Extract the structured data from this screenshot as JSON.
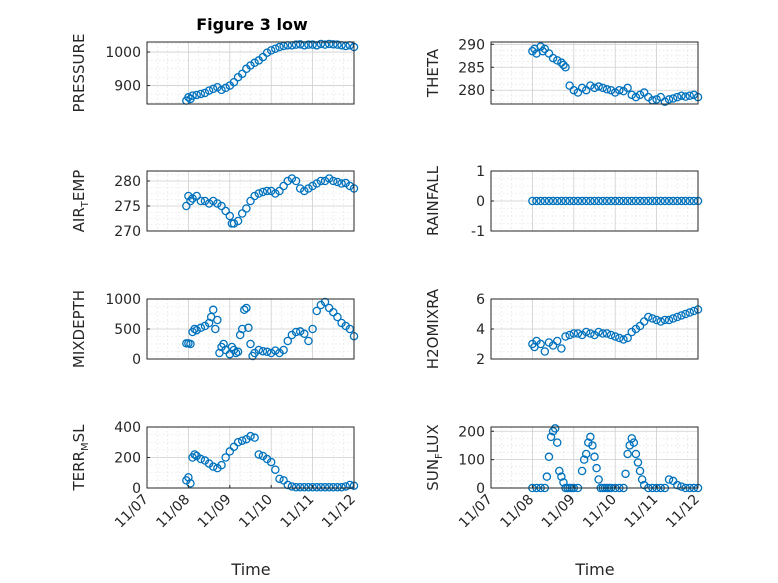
{
  "figure": {
    "title": "Figure 3 low",
    "marker_color": "#0072BD",
    "marker": "circle",
    "grid": "on (major + minor)",
    "layout": "4 rows x 2 columns",
    "x_tick_labels": [
      "11/07",
      "11/08",
      "11/09",
      "11/10",
      "11/11",
      "11/12"
    ],
    "x_label": "Time"
  },
  "chart_data": [
    {
      "type": "scatter",
      "ylabel": "PRESSURE",
      "ylim": [
        845,
        1030
      ],
      "yticks": [
        900,
        1000
      ],
      "ytick_labels": [
        "900",
        "1000"
      ],
      "x": [
        0.95,
        1.0,
        1.05,
        1.1,
        1.2,
        1.3,
        1.4,
        1.5,
        1.6,
        1.7,
        1.8,
        1.9,
        2.0,
        2.1,
        2.2,
        2.3,
        2.4,
        2.5,
        2.6,
        2.7,
        2.8,
        2.9,
        3.0,
        3.1,
        3.2,
        3.3,
        3.4,
        3.5,
        3.6,
        3.7,
        3.8,
        3.9,
        4.0,
        4.1,
        4.2,
        4.3,
        4.4,
        4.5,
        4.6,
        4.7,
        4.8,
        4.9,
        5.0
      ],
      "y": [
        855,
        865,
        860,
        870,
        872,
        875,
        878,
        885,
        890,
        895,
        887,
        893,
        900,
        910,
        925,
        935,
        950,
        960,
        968,
        975,
        985,
        998,
        1005,
        1010,
        1015,
        1018,
        1020,
        1020,
        1022,
        1023,
        1020,
        1022,
        1022,
        1020,
        1024,
        1022,
        1024,
        1023,
        1022,
        1020,
        1018,
        1020,
        1015
      ]
    },
    {
      "type": "scatter",
      "ylabel": "THETA",
      "ylim": [
        277,
        290.5
      ],
      "yticks": [
        280,
        285,
        290
      ],
      "ytick_labels": [
        "280",
        "285",
        "290"
      ],
      "x": [
        1.0,
        1.05,
        1.1,
        1.2,
        1.25,
        1.3,
        1.4,
        1.5,
        1.6,
        1.7,
        1.75,
        1.8,
        1.9,
        2.0,
        2.1,
        2.2,
        2.3,
        2.4,
        2.5,
        2.6,
        2.7,
        2.8,
        2.9,
        3.0,
        3.1,
        3.2,
        3.3,
        3.4,
        3.5,
        3.6,
        3.7,
        3.8,
        3.9,
        4.0,
        4.1,
        4.2,
        4.3,
        4.4,
        4.5,
        4.6,
        4.7,
        4.8,
        4.9,
        5.0
      ],
      "y": [
        288.5,
        289,
        288,
        289.5,
        288.5,
        289,
        288,
        287,
        286.5,
        286,
        285.5,
        285,
        281,
        280,
        279.5,
        280.5,
        280,
        281,
        280.5,
        280.8,
        280.5,
        280.2,
        280,
        279.5,
        280,
        279.8,
        280.5,
        279,
        278.5,
        279,
        279.5,
        278.5,
        277.8,
        278,
        278.5,
        277.5,
        278,
        278.2,
        278.5,
        278.8,
        278.6,
        278.8,
        279,
        278.5
      ]
    },
    {
      "type": "scatter",
      "ylabel": "AIR_TEMP",
      "ylim": [
        270,
        282
      ],
      "yticks": [
        270,
        275,
        280
      ],
      "ytick_labels": [
        "270",
        "275",
        "280"
      ],
      "x": [
        0.95,
        1.0,
        1.05,
        1.1,
        1.2,
        1.3,
        1.4,
        1.5,
        1.6,
        1.7,
        1.8,
        1.9,
        2.0,
        2.05,
        2.1,
        2.2,
        2.3,
        2.4,
        2.5,
        2.6,
        2.7,
        2.8,
        2.9,
        3.0,
        3.1,
        3.2,
        3.3,
        3.4,
        3.5,
        3.6,
        3.7,
        3.8,
        3.9,
        4.0,
        4.1,
        4.2,
        4.3,
        4.4,
        4.5,
        4.6,
        4.7,
        4.8,
        4.9,
        5.0
      ],
      "y": [
        275,
        277,
        276,
        276.5,
        277,
        276,
        276,
        275.5,
        276,
        275.5,
        275,
        274,
        273,
        271.5,
        271.5,
        272,
        273.5,
        274.5,
        276,
        277,
        277.5,
        277.8,
        278,
        278,
        277.5,
        278,
        279,
        280,
        280.5,
        280,
        278.5,
        278,
        278.5,
        279,
        279.5,
        280,
        280,
        280.5,
        280,
        279.8,
        279.5,
        279.6,
        279,
        278.5
      ]
    },
    {
      "type": "scatter",
      "ylabel": "RAINFALL",
      "ylim": [
        -1,
        1
      ],
      "yticks": [
        -1,
        0,
        1
      ],
      "ytick_labels": [
        "-1",
        "0",
        "1"
      ],
      "x": [
        1.0,
        1.1,
        1.2,
        1.3,
        1.4,
        1.5,
        1.6,
        1.7,
        1.8,
        1.9,
        2.0,
        2.1,
        2.2,
        2.3,
        2.4,
        2.5,
        2.6,
        2.7,
        2.8,
        2.9,
        3.0,
        3.1,
        3.2,
        3.3,
        3.4,
        3.5,
        3.6,
        3.7,
        3.8,
        3.9,
        4.0,
        4.1,
        4.2,
        4.3,
        4.4,
        4.5,
        4.6,
        4.7,
        4.8,
        4.9,
        5.0
      ],
      "y": [
        0,
        0,
        0,
        0,
        0,
        0,
        0,
        0,
        0,
        0,
        0,
        0,
        0,
        0,
        0,
        0,
        0,
        0,
        0,
        0,
        0,
        0,
        0,
        0,
        0,
        0,
        0,
        0,
        0,
        0,
        0,
        0,
        0,
        0,
        0,
        0,
        0,
        0,
        0,
        0,
        0
      ]
    },
    {
      "type": "scatter",
      "ylabel": "MIXDEPTH",
      "ylim": [
        0,
        1000
      ],
      "yticks": [
        0,
        500,
        1000
      ],
      "ytick_labels": [
        "0",
        "500",
        "1000"
      ],
      "x": [
        0.95,
        1.0,
        1.05,
        1.1,
        1.15,
        1.2,
        1.3,
        1.4,
        1.5,
        1.55,
        1.6,
        1.65,
        1.7,
        1.75,
        1.8,
        1.85,
        1.9,
        2.0,
        2.05,
        2.1,
        2.15,
        2.2,
        2.25,
        2.3,
        2.35,
        2.4,
        2.45,
        2.5,
        2.55,
        2.6,
        2.7,
        2.8,
        2.9,
        3.0,
        3.1,
        3.2,
        3.3,
        3.4,
        3.5,
        3.6,
        3.7,
        3.8,
        3.9,
        4.0,
        4.1,
        4.2,
        4.3,
        4.4,
        4.5,
        4.6,
        4.7,
        4.8,
        4.9,
        5.0
      ],
      "y": [
        260,
        260,
        250,
        450,
        500,
        480,
        520,
        550,
        600,
        700,
        820,
        500,
        650,
        100,
        200,
        250,
        150,
        80,
        200,
        150,
        100,
        120,
        400,
        500,
        820,
        850,
        520,
        250,
        50,
        100,
        150,
        130,
        120,
        100,
        140,
        100,
        150,
        300,
        400,
        450,
        460,
        420,
        300,
        500,
        800,
        900,
        950,
        850,
        780,
        700,
        600,
        550,
        500,
        380
      ]
    },
    {
      "type": "scatter",
      "ylabel": "H2OMIXRA",
      "ylim": [
        2,
        6
      ],
      "yticks": [
        2,
        4,
        6
      ],
      "ytick_labels": [
        "2",
        "4",
        "6"
      ],
      "x": [
        1.0,
        1.05,
        1.1,
        1.2,
        1.3,
        1.4,
        1.5,
        1.6,
        1.7,
        1.8,
        1.9,
        2.0,
        2.1,
        2.2,
        2.3,
        2.4,
        2.5,
        2.6,
        2.7,
        2.8,
        2.9,
        3.0,
        3.1,
        3.2,
        3.3,
        3.4,
        3.5,
        3.6,
        3.7,
        3.8,
        3.9,
        4.0,
        4.1,
        4.2,
        4.3,
        4.4,
        4.5,
        4.6,
        4.7,
        4.8,
        4.9,
        5.0
      ],
      "y": [
        3.0,
        2.8,
        3.2,
        3.0,
        2.5,
        3.1,
        2.9,
        3.2,
        2.7,
        3.5,
        3.6,
        3.7,
        3.7,
        3.6,
        3.8,
        3.7,
        3.6,
        3.8,
        3.7,
        3.7,
        3.6,
        3.5,
        3.4,
        3.3,
        3.4,
        3.8,
        4.0,
        4.2,
        4.5,
        4.8,
        4.7,
        4.6,
        4.5,
        4.6,
        4.6,
        4.7,
        4.8,
        4.9,
        5.0,
        5.1,
        5.2,
        5.3
      ]
    },
    {
      "type": "scatter",
      "ylabel": "TERR_MSL",
      "ylim": [
        0,
        400
      ],
      "yticks": [
        0,
        200,
        400
      ],
      "ytick_labels": [
        "0",
        "200",
        "400"
      ],
      "x": [
        0.95,
        1.0,
        1.05,
        1.1,
        1.15,
        1.2,
        1.3,
        1.4,
        1.5,
        1.6,
        1.7,
        1.8,
        1.9,
        2.0,
        2.1,
        2.2,
        2.3,
        2.4,
        2.5,
        2.6,
        2.7,
        2.8,
        2.9,
        3.0,
        3.1,
        3.2,
        3.3,
        3.4,
        3.5,
        3.6,
        3.7,
        3.8,
        3.9,
        4.0,
        4.1,
        4.2,
        4.3,
        4.4,
        4.5,
        4.6,
        4.7,
        4.8,
        4.9,
        5.0
      ],
      "y": [
        50,
        70,
        30,
        200,
        220,
        210,
        190,
        180,
        160,
        140,
        130,
        150,
        200,
        240,
        270,
        300,
        310,
        320,
        340,
        330,
        220,
        210,
        190,
        170,
        120,
        60,
        50,
        20,
        10,
        5,
        5,
        5,
        5,
        5,
        5,
        5,
        5,
        5,
        5,
        5,
        5,
        10,
        20,
        15
      ]
    },
    {
      "type": "scatter",
      "ylabel": "SUN_FLUX",
      "ylim": [
        0,
        215
      ],
      "yticks": [
        0,
        100,
        200
      ],
      "ytick_labels": [
        "0",
        "100",
        "200"
      ],
      "x": [
        1.0,
        1.1,
        1.2,
        1.3,
        1.35,
        1.4,
        1.45,
        1.5,
        1.55,
        1.6,
        1.65,
        1.7,
        1.75,
        1.8,
        1.85,
        1.9,
        1.95,
        2.0,
        2.1,
        2.2,
        2.25,
        2.3,
        2.35,
        2.4,
        2.45,
        2.5,
        2.55,
        2.6,
        2.65,
        2.7,
        2.75,
        2.8,
        2.85,
        2.9,
        3.0,
        3.1,
        3.2,
        3.25,
        3.3,
        3.35,
        3.4,
        3.45,
        3.5,
        3.55,
        3.6,
        3.65,
        3.7,
        3.8,
        3.9,
        4.0,
        4.1,
        4.2,
        4.3,
        4.4,
        4.5,
        4.6,
        4.7,
        4.8,
        4.9,
        5.0
      ],
      "y": [
        0,
        0,
        0,
        0,
        40,
        110,
        180,
        200,
        210,
        160,
        60,
        40,
        20,
        0,
        0,
        0,
        0,
        0,
        0,
        60,
        100,
        120,
        160,
        180,
        150,
        110,
        70,
        30,
        0,
        0,
        0,
        0,
        0,
        0,
        0,
        0,
        0,
        50,
        120,
        150,
        175,
        160,
        120,
        90,
        60,
        30,
        10,
        0,
        0,
        0,
        0,
        0,
        30,
        25,
        10,
        5,
        0,
        0,
        0,
        0
      ]
    }
  ]
}
